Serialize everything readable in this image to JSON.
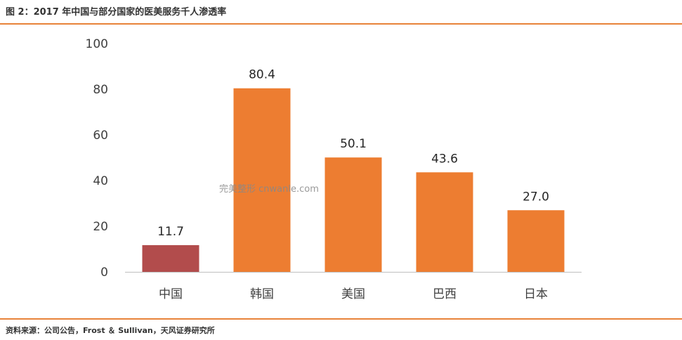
{
  "figure_title": "图 2：2017 年中国与部分国家的医美服务千人渗透率",
  "source": "资料来源：公司公告，Frost ＆ Sullivan，天风证券研究所",
  "watermark": "完美整形 cnwanle.com",
  "colors": {
    "highlight": "#b24c4c",
    "bar": "#ed7d31",
    "rule": "#e8833a",
    "axis": "#bfbfbf"
  },
  "chart_data": {
    "type": "bar",
    "title": "",
    "xlabel": "",
    "ylabel": "",
    "categories": [
      "中国",
      "韩国",
      "美国",
      "巴西",
      "日本"
    ],
    "values": [
      11.7,
      80.4,
      50.1,
      43.6,
      27.0
    ],
    "data_labels": [
      "11.7",
      "80.4",
      "50.1",
      "43.6",
      "27.0"
    ],
    "ylim": [
      0,
      100
    ],
    "yticks": [
      0,
      20,
      40,
      60,
      80,
      100
    ],
    "grid": false,
    "legend": "none"
  }
}
